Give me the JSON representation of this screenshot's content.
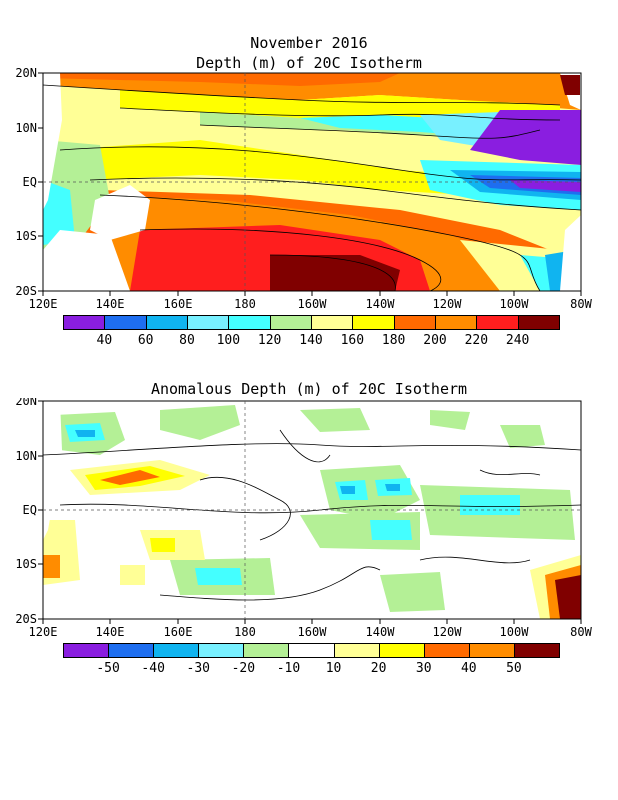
{
  "header": {
    "title": "November 2016"
  },
  "top_panel": {
    "title": "Depth (m) of 20C Isotherm",
    "lat_labels": [
      "20N",
      "10N",
      "EQ",
      "10S",
      "20S"
    ],
    "lon_labels": [
      "120E",
      "140E",
      "160E",
      "180",
      "160W",
      "140W",
      "120W",
      "100W",
      "80W"
    ],
    "colorbar": {
      "colors": [
        "#8a1ee0",
        "#1e6ef0",
        "#10b4f0",
        "#78f0ff",
        "#44ffff",
        "#b4f096",
        "#ffff96",
        "#ffff00",
        "#ff6a00",
        "#ff8c00",
        "#ff1e1e",
        "#800000"
      ],
      "labels": [
        "40",
        "60",
        "80",
        "100",
        "120",
        "140",
        "160",
        "180",
        "200",
        "220",
        "240"
      ]
    }
  },
  "bottom_panel": {
    "title": "Anomalous Depth (m) of 20C Isotherm",
    "lat_labels": [
      "20N",
      "10N",
      "EQ",
      "10S",
      "20S"
    ],
    "lon_labels": [
      "120E",
      "140E",
      "160E",
      "180",
      "160W",
      "140W",
      "120W",
      "100W",
      "80W"
    ],
    "colorbar": {
      "colors": [
        "#8a1ee0",
        "#1e6ef0",
        "#10b4f0",
        "#78f0ff",
        "#b4f096",
        "#ffffff",
        "#ffff96",
        "#ffff00",
        "#ff6a00",
        "#ff8c00",
        "#800000"
      ],
      "labels": [
        "-50",
        "-40",
        "-30",
        "-20",
        "-10",
        "10",
        "20",
        "30",
        "40",
        "50"
      ]
    }
  }
}
